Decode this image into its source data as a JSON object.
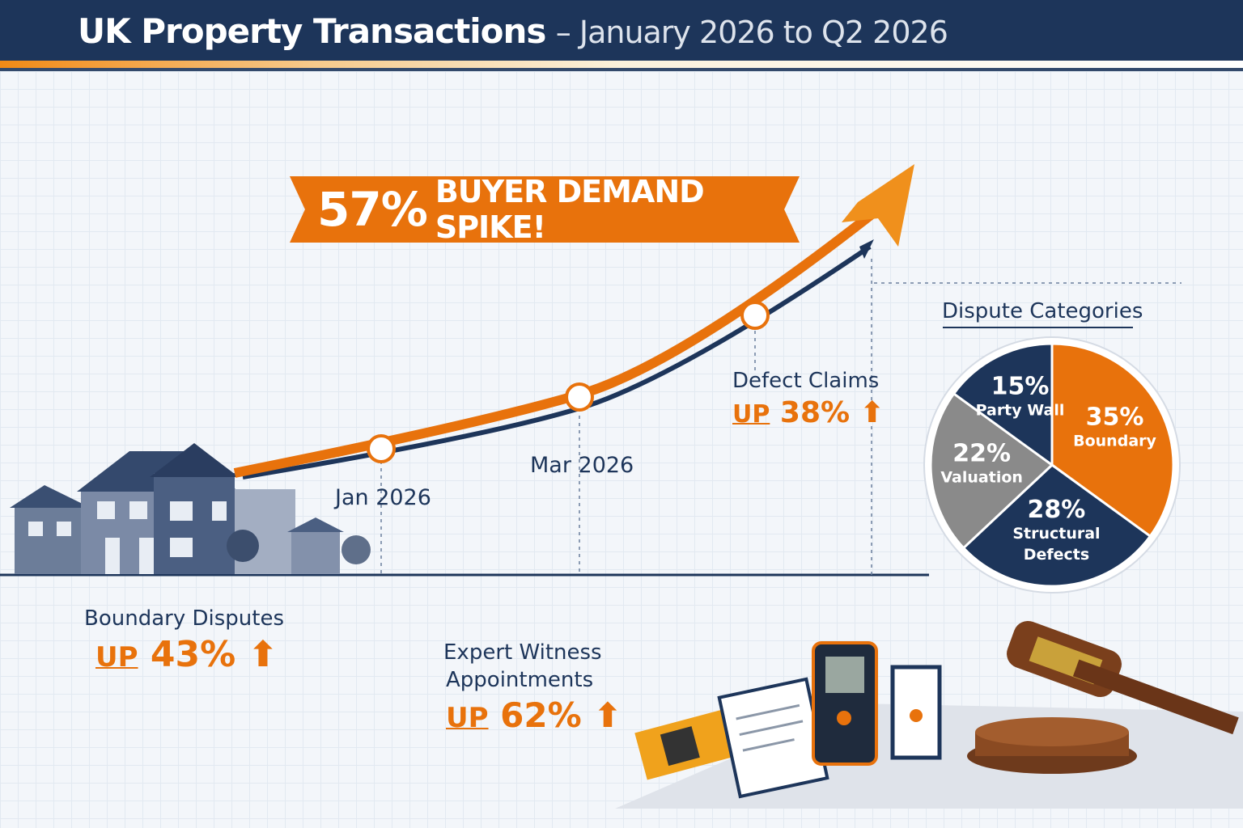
{
  "header": {
    "title_main": "UK Property Transactions",
    "title_sub": "– January 2026 to Q2 2026"
  },
  "banner": {
    "value": "57%",
    "text": "BUYER DEMAND SPIKE!"
  },
  "colors": {
    "navy": "#1d355a",
    "orange": "#e8720c",
    "gray": "#8a8a8a"
  },
  "chart_data": [
    {
      "type": "line",
      "title": "",
      "x_labels": [
        "Jan 2026",
        "Mar 2026"
      ],
      "trend": "rising",
      "annotation": "57% BUYER DEMAND SPIKE!"
    },
    {
      "type": "pie",
      "title": "Dispute Categories",
      "slices": [
        {
          "label": "Boundary",
          "value": 35,
          "color": "#e8720c"
        },
        {
          "label": "Structural Defects",
          "value": 28,
          "color": "#1d355a"
        },
        {
          "label": "Valuation",
          "value": 22,
          "color": "#8a8a8a"
        },
        {
          "label": "Party Wall",
          "value": 15,
          "color": "#1d355a"
        }
      ]
    }
  ],
  "stats": {
    "defect": {
      "label": "Defect Claims",
      "up": "UP",
      "value": "38%"
    },
    "boundary": {
      "label": "Boundary Disputes",
      "up": "UP",
      "value": "43%"
    },
    "expert": {
      "label1": "Expert Witness",
      "label2": "Appointments",
      "up": "UP",
      "value": "62%"
    }
  }
}
